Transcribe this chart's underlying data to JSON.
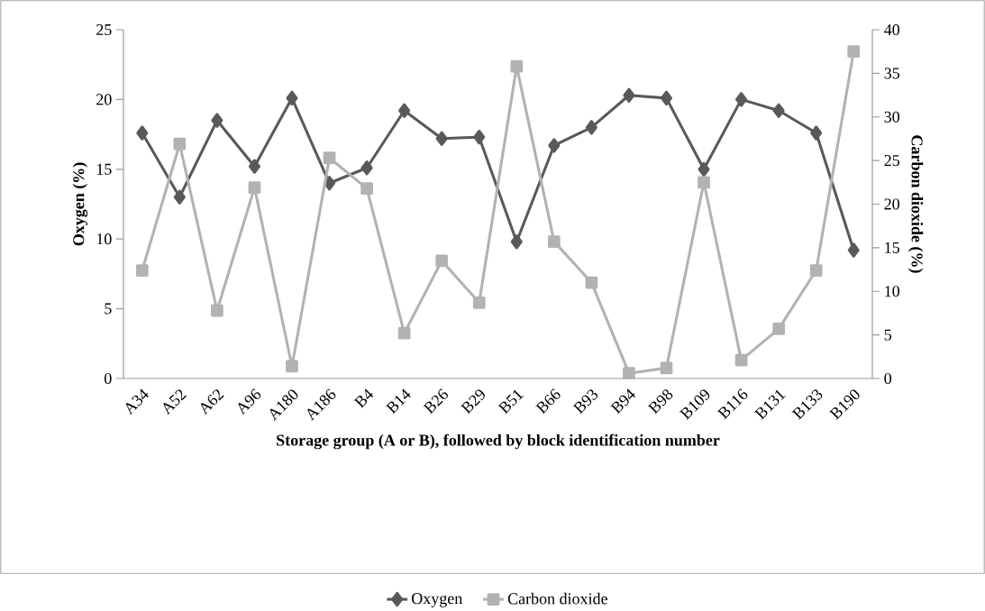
{
  "chart_data": {
    "type": "line",
    "xlabel": "Storage group (A or B), followed by block identification number",
    "ylabel": "Oxygen (%)",
    "y2label": "Carbon dioxide (%)",
    "categories": [
      "A34",
      "A52",
      "A62",
      "A96",
      "A180",
      "A186",
      "B4",
      "B14",
      "B26",
      "B29",
      "B51",
      "B66",
      "B93",
      "B94",
      "B98",
      "B109",
      "B116",
      "B131",
      "B133",
      "B190"
    ],
    "series": [
      {
        "name": "Oxygen",
        "color": "#595959",
        "marker": "diamond",
        "values": [
          17.6,
          13.0,
          18.5,
          15.2,
          20.1,
          14.0,
          15.1,
          19.2,
          17.2,
          17.3,
          9.8,
          16.7,
          18.0,
          20.3,
          20.1,
          15.0,
          20.0,
          19.2,
          17.6,
          9.2
        ]
      },
      {
        "name": "Carbon dioxide",
        "color": "#b2b2b2",
        "marker": "square",
        "axis": "y2",
        "values": [
          12.4,
          26.9,
          7.8,
          21.9,
          1.4,
          25.3,
          21.8,
          5.2,
          13.5,
          8.7,
          35.8,
          15.7,
          11.0,
          0.6,
          1.2,
          22.5,
          2.1,
          5.7,
          12.4,
          37.5
        ]
      }
    ],
    "ylim": [
      0,
      25
    ],
    "yticks": [
      0,
      5,
      10,
      15,
      20,
      25
    ],
    "y2lim": [
      0,
      40
    ],
    "y2ticks": [
      0,
      5,
      10,
      15,
      20,
      25,
      30,
      35,
      40
    ],
    "legend": "bottom"
  }
}
